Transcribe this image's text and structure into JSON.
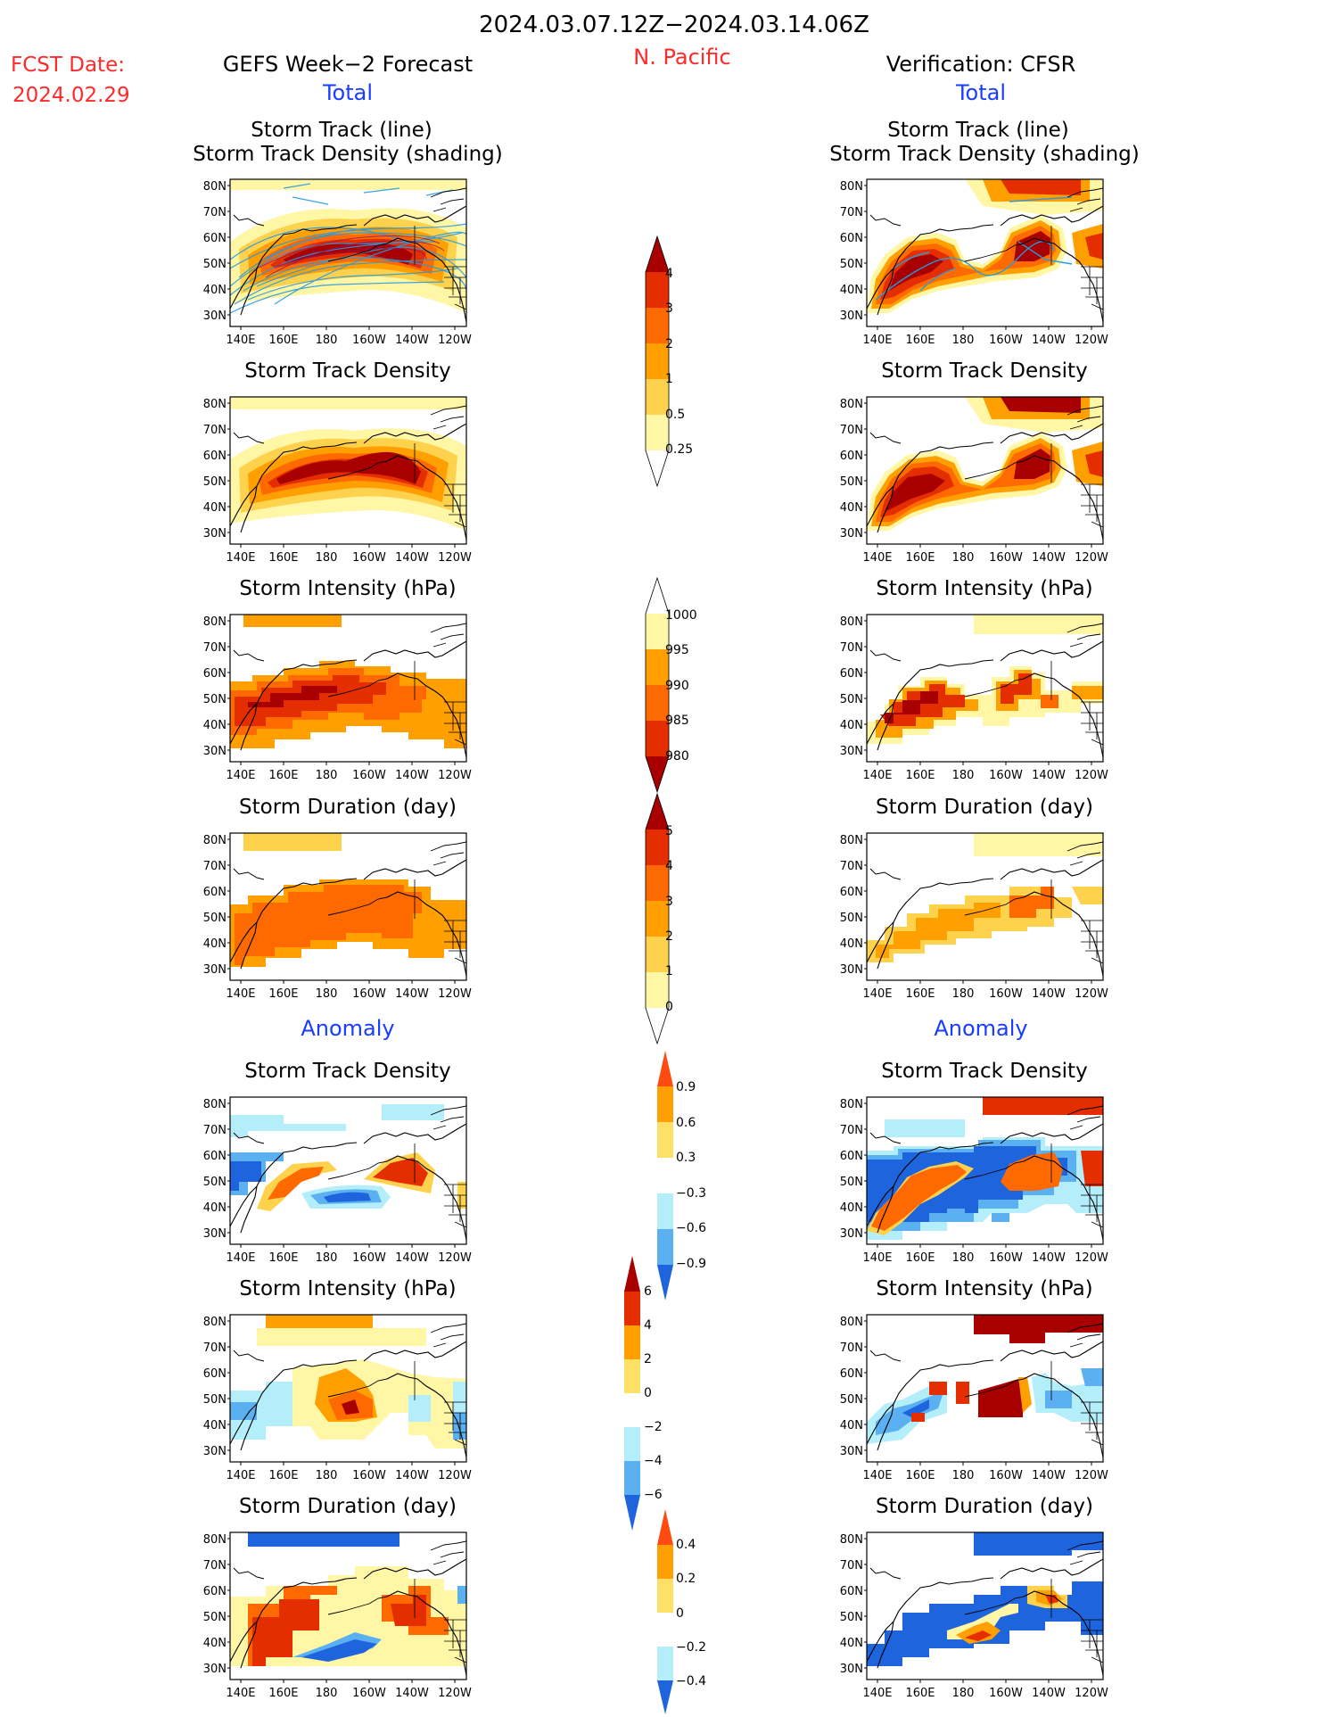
{
  "header": {
    "date_range": "2024.03.07.12Z−2024.03.14.06Z",
    "region": "N. Pacific",
    "fcst_label": "FCST Date:",
    "fcst_date": "2024.02.29",
    "left_title": "GEFS Week−2 Forecast",
    "right_title": "Verification: CFSR"
  },
  "section_labels": {
    "total": "Total",
    "anomaly": "Anomaly"
  },
  "panel_titles": {
    "track_line": "Storm Track (line)",
    "track_shading": "Storm Track Density (shading)",
    "density": "Storm Track Density",
    "intensity": "Storm Intensity (hPa)",
    "duration": "Storm Duration (day)"
  },
  "map_axes": {
    "lat_ticks": [
      "80N",
      "70N",
      "60N",
      "50N",
      "40N",
      "30N"
    ],
    "lon_ticks": [
      "140E",
      "160E",
      "180",
      "160W",
      "140W",
      "120W"
    ]
  },
  "colorbars": [
    {
      "labels": [
        "4",
        "3",
        "2",
        "1",
        "0.5",
        "0.25"
      ]
    },
    {
      "labels": [
        "1000",
        "995",
        "990",
        "985",
        "980"
      ]
    },
    {
      "labels": [
        "5",
        "4",
        "3",
        "2",
        "1",
        "0"
      ]
    },
    {
      "labels": [
        "0.9",
        "0.6",
        "0.3",
        "−0.3",
        "−0.6",
        "−0.9"
      ]
    },
    {
      "labels": [
        "6",
        "4",
        "2",
        "0",
        "−2",
        "−4",
        "−6"
      ]
    },
    {
      "labels": [
        "0.4",
        "0.2",
        "0",
        "−0.2",
        "−0.4"
      ]
    }
  ],
  "colors": {
    "title_red": "#ff2a2a",
    "section_blue": "#1a3cff",
    "warm_scale": [
      "#fff6a6",
      "#ffd24d",
      "#ffa000",
      "#ff6a00",
      "#e42e00",
      "#a80000"
    ],
    "cool_scale": [
      "#b4eefa",
      "#5ab0f0",
      "#1e64dc"
    ],
    "track_line": "#2a9ae0"
  }
}
